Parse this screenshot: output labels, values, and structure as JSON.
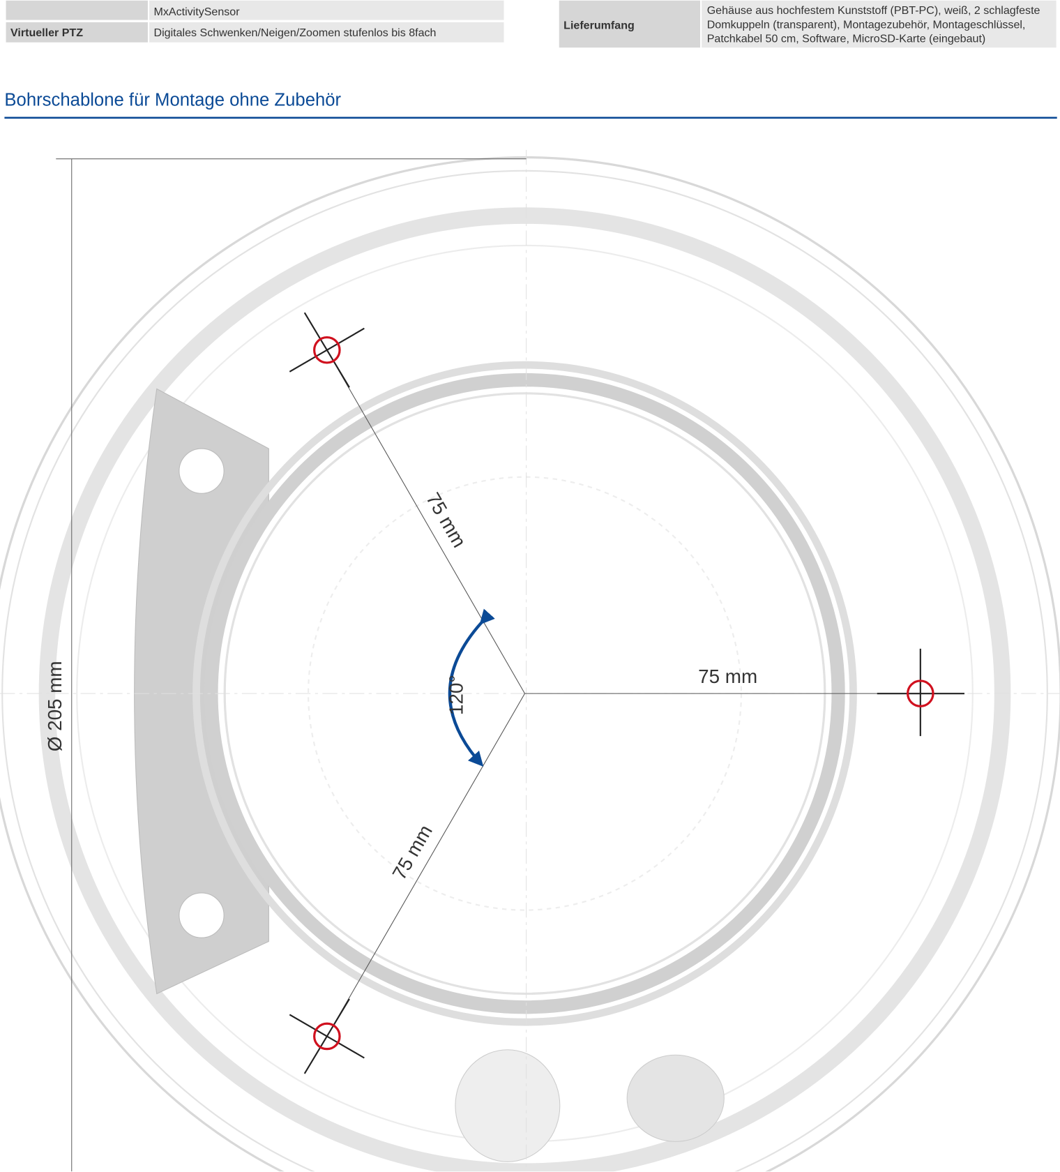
{
  "spec_table_left": {
    "rows": [
      [
        "MxActivitySensor"
      ],
      [
        "Virtueller PTZ",
        "Digitales Schwenken/Neigen/Zoomen stufenlos bis 8fach"
      ]
    ]
  },
  "spec_table_right": {
    "rows": [
      [
        "Lieferumfang",
        "Gehäuse aus hochfestem Kunststoff (PBT-PC), weiß, 2 schlagfeste",
        "Domkuppeln (transparent), Montagezubehör, Montageschlüssel,",
        "Patchkabel 50 cm, Software, MicroSD-Karte (eingebaut)"
      ]
    ]
  },
  "section": {
    "title": "Bohrschablone für Montage ohne Zubehör"
  },
  "diagram": {
    "diameter_label": "Ø 205 mm",
    "angle_label": "120°",
    "radius_labels": [
      "75 mm",
      "75 mm",
      "75 mm"
    ]
  }
}
